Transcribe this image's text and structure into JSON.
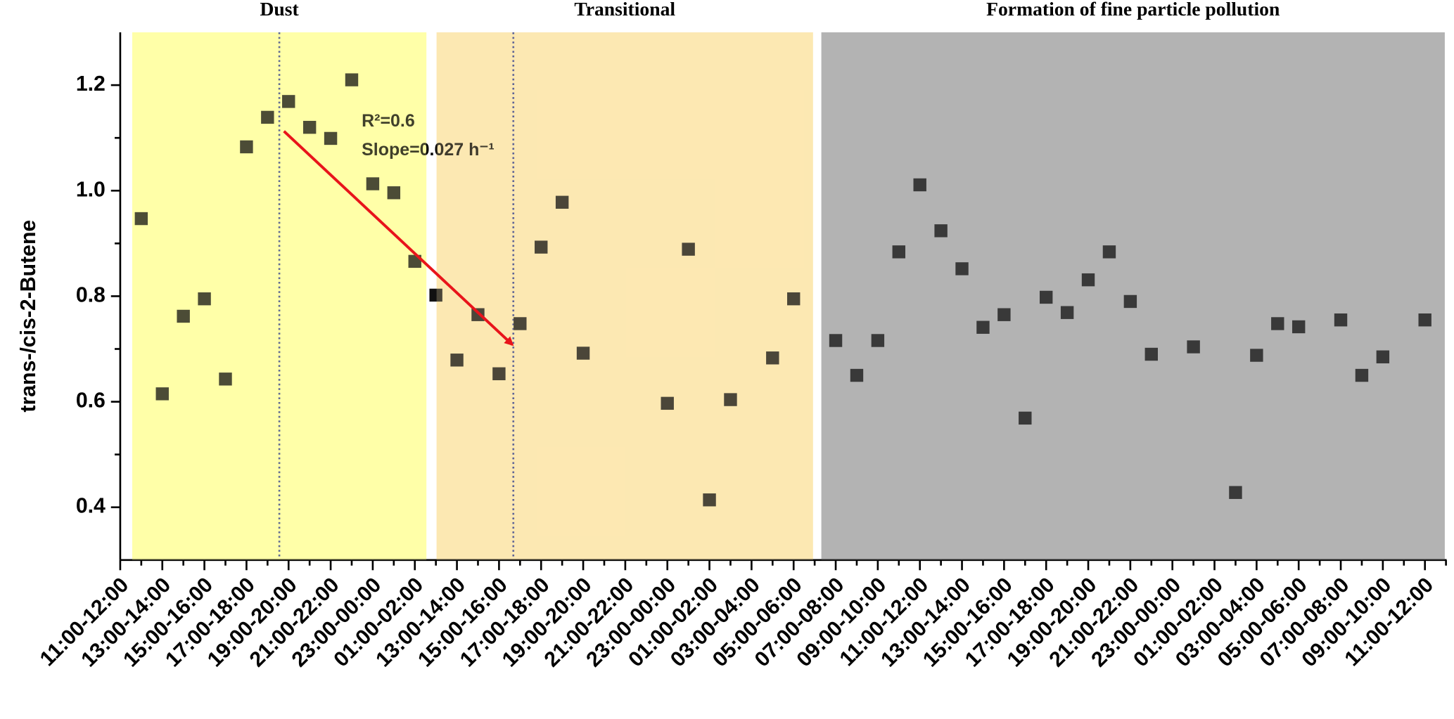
{
  "chart_data": {
    "type": "scatter",
    "ylabel": "trans-/cis-2-Butene",
    "categories": [
      "11:00-12:00",
      null,
      "13:00-14:00",
      null,
      "15:00-16:00",
      null,
      "17:00-18:00",
      null,
      "19:00-20:00",
      null,
      "21:00-22:00",
      null,
      "23:00-00:00",
      null,
      "01:00-02:00",
      null,
      "13:00-14:00",
      null,
      "15:00-16:00",
      null,
      "17:00-18:00",
      null,
      "19:00-20:00",
      null,
      "21:00-22:00",
      null,
      "23:00-00:00",
      null,
      "01:00-02:00",
      null,
      "03:00-04:00",
      null,
      "05:00-06:00",
      null,
      "07:00-08:00",
      null,
      "09:00-10:00",
      null,
      "11:00-12:00",
      null,
      "13:00-14:00",
      null,
      "15:00-16:00",
      null,
      "17:00-18:00",
      null,
      "19:00-20:00",
      null,
      "21:00-22:00",
      null,
      "23:00-00:00",
      null,
      "01:00-02:00",
      null,
      "03:00-04:00",
      null,
      "05:00-06:00",
      null,
      "07:00-08:00",
      null,
      "09:00-10:00",
      null,
      "11:00-12:00",
      null
    ],
    "series": [
      {
        "color": "#111111",
        "values": [
          null,
          0.947,
          0.615,
          0.762,
          0.795,
          0.643,
          1.083,
          1.139,
          1.169,
          1.12,
          1.099,
          1.21,
          1.013,
          0.996,
          0.866,
          0.802,
          0.679,
          0.765,
          0.653,
          0.748,
          0.893,
          0.978,
          0.692,
          null,
          null,
          null,
          0.597,
          0.889,
          0.414,
          0.604,
          null,
          0.683,
          0.795,
          null,
          0.716,
          0.65,
          0.716,
          0.884,
          1.011,
          0.924,
          0.852,
          0.741,
          0.765,
          0.569,
          0.798,
          0.769,
          0.831,
          0.884,
          0.79,
          0.69,
          null,
          0.704,
          null,
          0.428,
          0.688,
          0.748,
          0.742,
          null,
          0.755,
          0.65,
          0.685,
          null,
          0.755,
          null
        ]
      }
    ],
    "ylim": [
      0.3,
      1.3
    ],
    "yticks": [
      0.4,
      0.6,
      0.8,
      {
        "value": 1,
        "label": "1.0"
      },
      1.2
    ],
    "regions": [
      {
        "name": "Dust",
        "color": "#ffffa8"
      },
      {
        "name": "Transitional",
        "color": "#fde8b2"
      },
      {
        "name": "Formation of  fine particle pollution",
        "color": "#b3b3b3"
      }
    ],
    "annotations": [
      "R²=0.6",
      "Slope=0.027  h⁻¹"
    ],
    "arrow_color": "#e8141b"
  }
}
